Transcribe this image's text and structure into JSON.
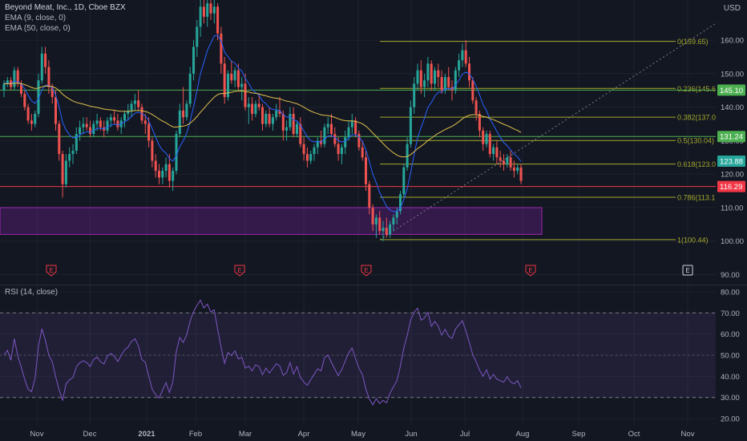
{
  "header": {
    "title": "Beyond Meat, Inc., 1D, Cboe BZX",
    "ema_short": "EMA (9, close, 0)",
    "ema_long": "EMA (50, close, 0)",
    "currency": "USD"
  },
  "rsi_label": "RSI (14, close)",
  "colors": {
    "background": "#131722",
    "grid": "#1e222d",
    "candle_up": "#26a69a",
    "candle_down": "#ef5350",
    "ema_short": "#2962ff",
    "ema_long": "#e0c04b",
    "fib": "#a3a82c",
    "green_line": "#4caf50",
    "red_line": "#f23645",
    "zone": "#7b1fa2",
    "rsi": "#7e57c2",
    "axis_text": "#b2b5be"
  },
  "chart_data": {
    "type": "candlestick",
    "price_axis": {
      "range": [
        87,
        172
      ],
      "ticks": [
        90,
        100,
        110,
        120,
        130,
        140,
        150,
        160
      ],
      "tick_labels": [
        "90.00",
        "100.00",
        "110.00",
        "120.00",
        "130.00",
        "140.00",
        "150.00",
        "160.00"
      ]
    },
    "rsi_axis": {
      "range": [
        17,
        83
      ],
      "ticks": [
        20,
        30,
        40,
        50,
        60,
        70,
        80
      ],
      "tick_labels": [
        "20.00",
        "30.00",
        "40.00",
        "50.00",
        "60.00",
        "70.00",
        "80.00"
      ],
      "band": [
        30,
        70
      ]
    },
    "time_axis": {
      "labels": [
        "Nov",
        "Dec",
        "2021",
        "Feb",
        "Mar",
        "Apr",
        "May",
        "Jun",
        "Jul",
        "Aug",
        "Sep",
        "Oct",
        "Nov"
      ],
      "bold": "2021"
    },
    "candles": [
      [
        145,
        148,
        143,
        147
      ],
      [
        147,
        149,
        146,
        148
      ],
      [
        148,
        149,
        145,
        146
      ],
      [
        146,
        152,
        145,
        151
      ],
      [
        151,
        152,
        146,
        147
      ],
      [
        147,
        148,
        143,
        144
      ],
      [
        144,
        145,
        139,
        140
      ],
      [
        140,
        141,
        135,
        136
      ],
      [
        136,
        138,
        133,
        135
      ],
      [
        135,
        139,
        134,
        138
      ],
      [
        138,
        150,
        137,
        148
      ],
      [
        148,
        158,
        147,
        156
      ],
      [
        156,
        158,
        150,
        152
      ],
      [
        152,
        154,
        144,
        146
      ],
      [
        146,
        147,
        141,
        143
      ],
      [
        143,
        145,
        133,
        135
      ],
      [
        135,
        136,
        124,
        126
      ],
      [
        126,
        127,
        113,
        117
      ],
      [
        117,
        126,
        116,
        124
      ],
      [
        124,
        128,
        122,
        126
      ],
      [
        126,
        129,
        123,
        127
      ],
      [
        127,
        134,
        126,
        132
      ],
      [
        132,
        136,
        130,
        134
      ],
      [
        134,
        137,
        132,
        135
      ],
      [
        135,
        137,
        133,
        134
      ],
      [
        134,
        136,
        131,
        132
      ],
      [
        132,
        136,
        131,
        135
      ],
      [
        135,
        138,
        133,
        136
      ],
      [
        136,
        137,
        133,
        134
      ],
      [
        134,
        136,
        131,
        133
      ],
      [
        133,
        137,
        132,
        136
      ],
      [
        136,
        138,
        134,
        137
      ],
      [
        137,
        139,
        135,
        136
      ],
      [
        136,
        138,
        133,
        134
      ],
      [
        134,
        137,
        132,
        136
      ],
      [
        136,
        139,
        134,
        138
      ],
      [
        138,
        141,
        136,
        139
      ],
      [
        139,
        142,
        137,
        141
      ],
      [
        141,
        144,
        139,
        142
      ],
      [
        142,
        145,
        139,
        140
      ],
      [
        140,
        141,
        135,
        136
      ],
      [
        136,
        138,
        132,
        135
      ],
      [
        135,
        137,
        128,
        130
      ],
      [
        130,
        131,
        122,
        124
      ],
      [
        124,
        126,
        119,
        121
      ],
      [
        121,
        123,
        117,
        119
      ],
      [
        119,
        122,
        117,
        121
      ],
      [
        121,
        125,
        119,
        123
      ],
      [
        123,
        126,
        116,
        118
      ],
      [
        118,
        122,
        115,
        121
      ],
      [
        121,
        133,
        120,
        132
      ],
      [
        132,
        141,
        131,
        139
      ],
      [
        139,
        146,
        135,
        137
      ],
      [
        137,
        142,
        136,
        141
      ],
      [
        141,
        152,
        140,
        150
      ],
      [
        150,
        160,
        148,
        158
      ],
      [
        158,
        166,
        155,
        164
      ],
      [
        164,
        172,
        161,
        170
      ],
      [
        170,
        172,
        165,
        167
      ],
      [
        167,
        172,
        164,
        171
      ],
      [
        171,
        172,
        166,
        168
      ],
      [
        168,
        172,
        165,
        170
      ],
      [
        170,
        171,
        160,
        162
      ],
      [
        162,
        164,
        150,
        153
      ],
      [
        153,
        155,
        141,
        143
      ],
      [
        143,
        151,
        142,
        150
      ],
      [
        150,
        154,
        147,
        148
      ],
      [
        148,
        152,
        146,
        151
      ],
      [
        151,
        153,
        145,
        146
      ],
      [
        146,
        149,
        142,
        147
      ],
      [
        147,
        150,
        139,
        140
      ],
      [
        140,
        143,
        135,
        141
      ],
      [
        141,
        143,
        136,
        138
      ],
      [
        138,
        142,
        137,
        141
      ],
      [
        141,
        144,
        139,
        140
      ],
      [
        140,
        141,
        133,
        135
      ],
      [
        135,
        139,
        134,
        138
      ],
      [
        138,
        140,
        134,
        135
      ],
      [
        135,
        138,
        133,
        137
      ],
      [
        137,
        141,
        136,
        139
      ],
      [
        139,
        143,
        137,
        138
      ],
      [
        138,
        139,
        130,
        133
      ],
      [
        133,
        136,
        130,
        134
      ],
      [
        134,
        140,
        133,
        138
      ],
      [
        138,
        140,
        131,
        132
      ],
      [
        132,
        136,
        131,
        135
      ],
      [
        135,
        137,
        128,
        129
      ],
      [
        129,
        131,
        124,
        126
      ],
      [
        126,
        128,
        122,
        124
      ],
      [
        124,
        127,
        123,
        126
      ],
      [
        126,
        129,
        124,
        128
      ],
      [
        128,
        131,
        126,
        130
      ],
      [
        130,
        133,
        128,
        129
      ],
      [
        129,
        135,
        128,
        134
      ],
      [
        134,
        137,
        132,
        135
      ],
      [
        135,
        138,
        131,
        132
      ],
      [
        132,
        134,
        128,
        129
      ],
      [
        129,
        131,
        124,
        126
      ],
      [
        126,
        129,
        123,
        128
      ],
      [
        128,
        133,
        126,
        131
      ],
      [
        131,
        136,
        130,
        134
      ],
      [
        134,
        138,
        132,
        136
      ],
      [
        136,
        137,
        131,
        132
      ],
      [
        132,
        133,
        127,
        128
      ],
      [
        128,
        130,
        124,
        125
      ],
      [
        125,
        127,
        115,
        117
      ],
      [
        117,
        118,
        108,
        110
      ],
      [
        110,
        111,
        103,
        105
      ],
      [
        105,
        108,
        101,
        107
      ],
      [
        107,
        109,
        102,
        103
      ],
      [
        103,
        106,
        100,
        104
      ],
      [
        104,
        107,
        101,
        102
      ],
      [
        102,
        106,
        101,
        105
      ],
      [
        105,
        108,
        103,
        107
      ],
      [
        107,
        110,
        105,
        109
      ],
      [
        109,
        115,
        108,
        114
      ],
      [
        114,
        123,
        113,
        122
      ],
      [
        122,
        131,
        121,
        129
      ],
      [
        129,
        142,
        128,
        140
      ],
      [
        140,
        149,
        138,
        147
      ],
      [
        147,
        153,
        145,
        151
      ],
      [
        151,
        154,
        144,
        146
      ],
      [
        146,
        150,
        143,
        148
      ],
      [
        148,
        155,
        146,
        153
      ],
      [
        153,
        154,
        145,
        147
      ],
      [
        147,
        152,
        145,
        151
      ],
      [
        151,
        153,
        146,
        149
      ],
      [
        149,
        151,
        144,
        145
      ],
      [
        145,
        150,
        144,
        149
      ],
      [
        149,
        152,
        145,
        146
      ],
      [
        146,
        148,
        142,
        145
      ],
      [
        145,
        152,
        144,
        151
      ],
      [
        151,
        156,
        149,
        154
      ],
      [
        154,
        159,
        152,
        157
      ],
      [
        157,
        160,
        152,
        153
      ],
      [
        153,
        155,
        146,
        148
      ],
      [
        148,
        149,
        141,
        142
      ],
      [
        142,
        143,
        136,
        138
      ],
      [
        138,
        139,
        131,
        133
      ],
      [
        133,
        134,
        127,
        129
      ],
      [
        129,
        133,
        128,
        132
      ],
      [
        132,
        133,
        125,
        126
      ],
      [
        126,
        129,
        124,
        128
      ],
      [
        128,
        130,
        123,
        125
      ],
      [
        125,
        127,
        122,
        124
      ],
      [
        124,
        126,
        121,
        123
      ],
      [
        123,
        126,
        122,
        125
      ],
      [
        125,
        127,
        121,
        122
      ],
      [
        122,
        124,
        119,
        121
      ],
      [
        121,
        123,
        120,
        122
      ],
      [
        122,
        123,
        117,
        118
      ]
    ],
    "horizontal_lines": [
      {
        "type": "green",
        "price": 145.1,
        "label": "145.10"
      },
      {
        "type": "green",
        "price": 131.24,
        "label": "131.24"
      },
      {
        "type": "red",
        "price": 116.29,
        "label": "116.29"
      }
    ],
    "last_price": {
      "price": 123.88,
      "label": "123.88"
    },
    "fib_levels": [
      {
        "ratio": "0",
        "price": 159.65,
        "label": "0(159.65)"
      },
      {
        "ratio": "0.236",
        "price": 145.6,
        "label": "0.236(145.6"
      },
      {
        "ratio": "0.382",
        "price": 137.0,
        "label": "0.382(137.0"
      },
      {
        "ratio": "0.5",
        "price": 130.04,
        "label": "0.5(130.04)"
      },
      {
        "ratio": "0.618",
        "price": 123.0,
        "label": "0.618(123.0"
      },
      {
        "ratio": "0.786",
        "price": 113.1,
        "label": "0.786(113.1"
      },
      {
        "ratio": "1",
        "price": 100.44,
        "label": "1(100.44)"
      }
    ],
    "zone": {
      "from": 102,
      "to": 110
    },
    "earnings_markers": [
      {
        "label": "E"
      },
      {
        "label": "E"
      },
      {
        "label": "E"
      },
      {
        "label": "E"
      },
      {
        "label": "E"
      }
    ]
  }
}
